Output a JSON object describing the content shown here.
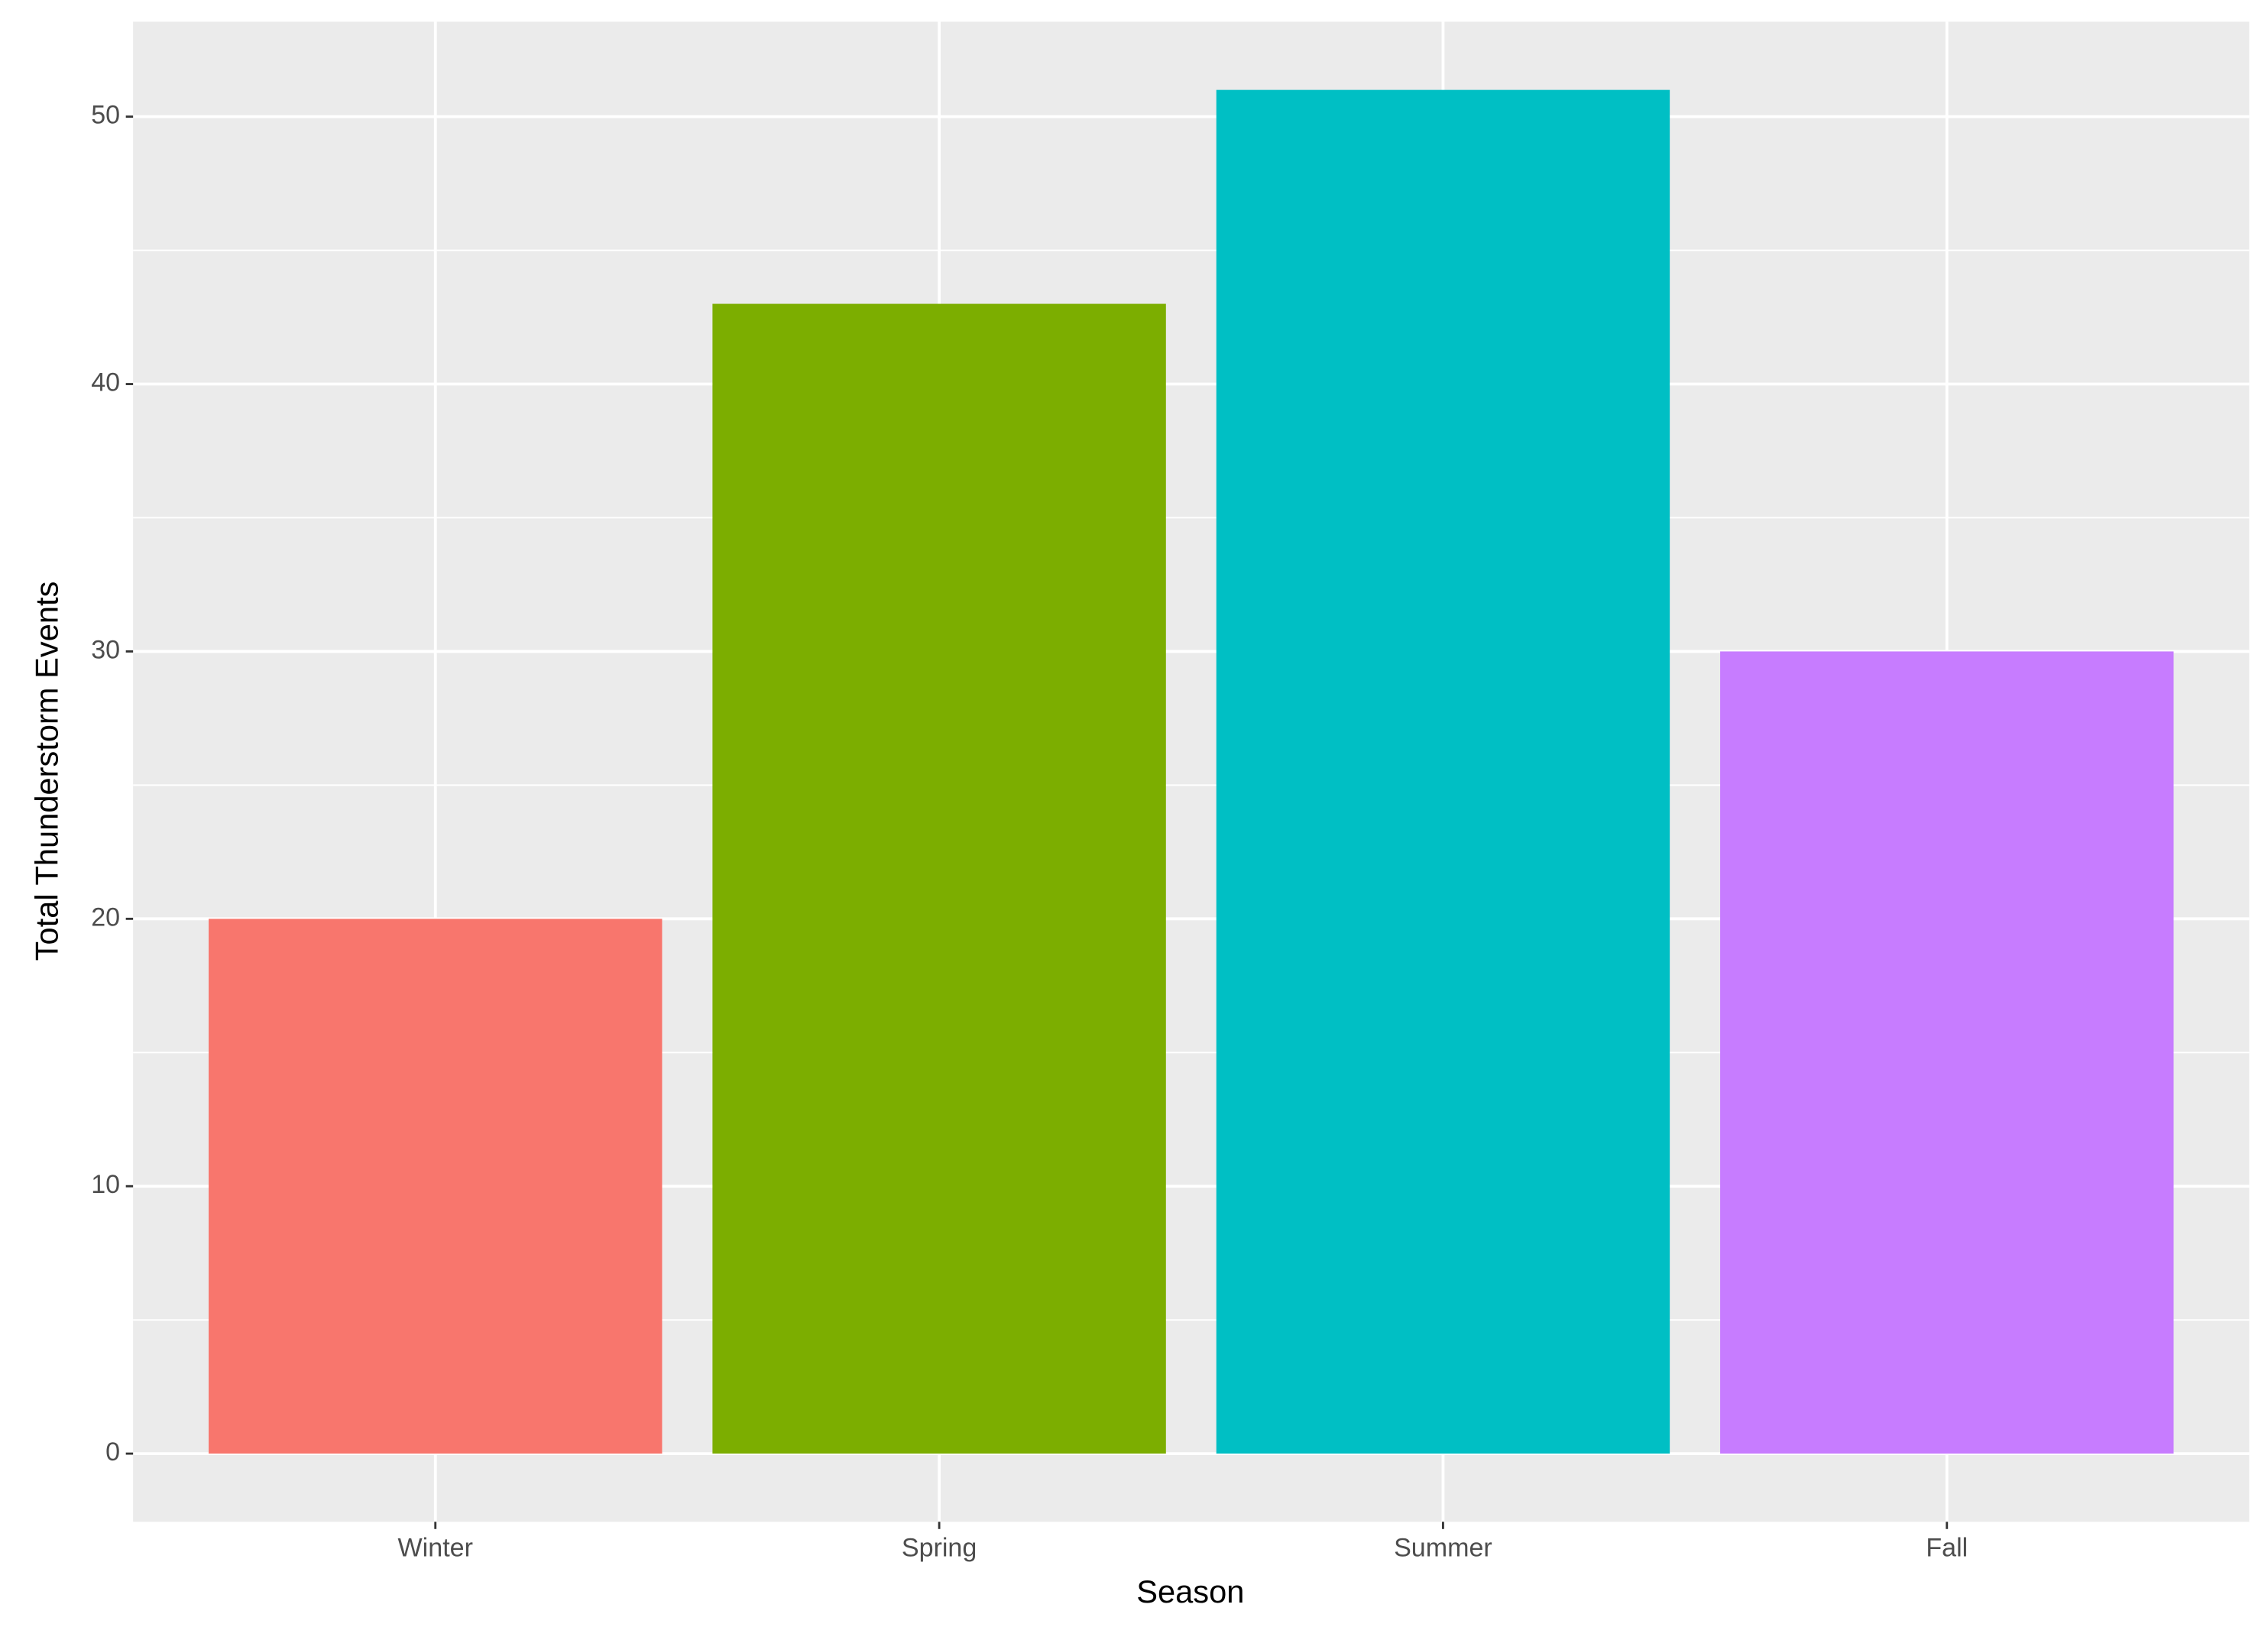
{
  "chart_data": {
    "type": "bar",
    "x_label": "Season",
    "y_label": "Total Thunderstorm Events",
    "categories": [
      "Winter",
      "Spring",
      "Summer",
      "Fall"
    ],
    "values": [
      20,
      43,
      51,
      30
    ],
    "colors": [
      "#F8766D",
      "#7CAE00",
      "#00BFC4",
      "#C77CFF"
    ],
    "ylim": [
      -2.55,
      53.55
    ],
    "yticks": [
      0,
      10,
      20,
      30,
      40,
      50
    ],
    "grid": true,
    "minor_grid": true
  }
}
